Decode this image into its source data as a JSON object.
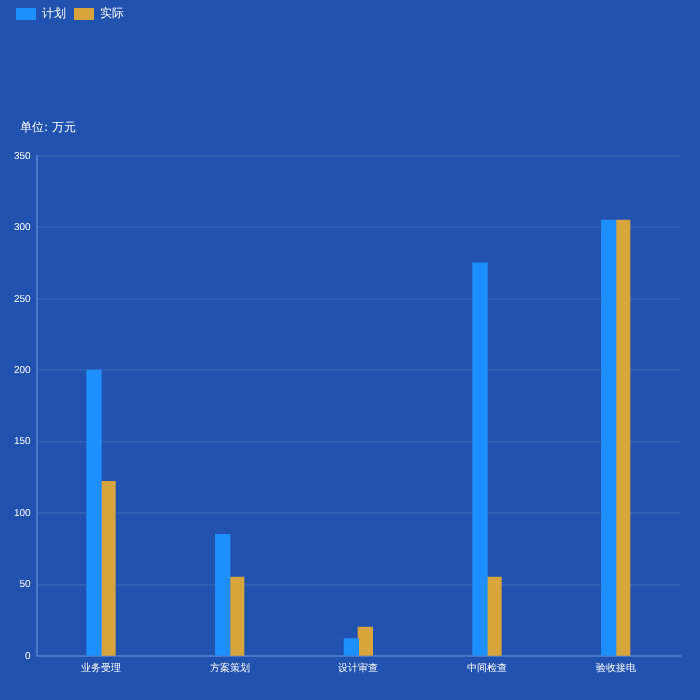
{
  "chart_data": {
    "type": "bar",
    "ylabel": "单位: 万元",
    "categories": [
      "业务受理",
      "方案策划",
      "设计审查",
      "中间检查",
      "验收接电"
    ],
    "series": [
      {
        "name": "计划",
        "color": "#1e8fff",
        "values": [
          200,
          85,
          12,
          275,
          305
        ]
      },
      {
        "name": "实际",
        "color": "#d8a43c",
        "values": [
          122,
          55,
          20,
          55,
          305
        ]
      }
    ],
    "ylim": [
      0,
      350
    ],
    "yticks": [
      0,
      50,
      100,
      150,
      200,
      250,
      300,
      350
    ],
    "grid": "y",
    "legend": "top left"
  }
}
